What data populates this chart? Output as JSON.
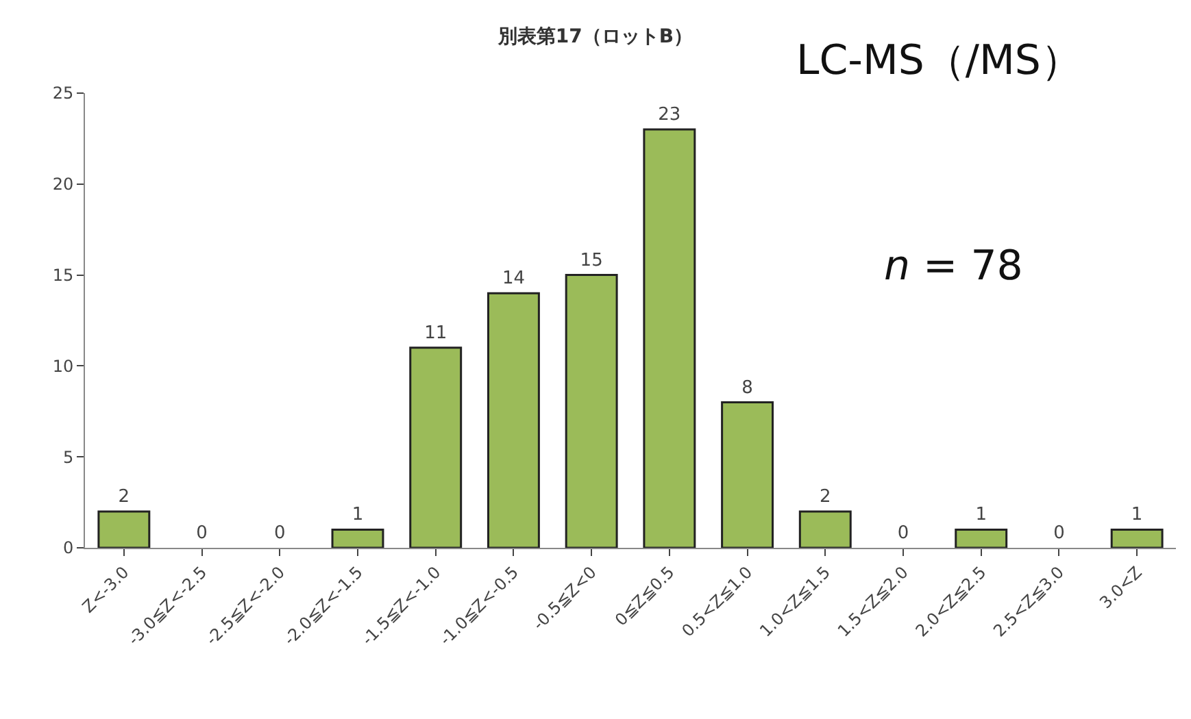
{
  "chart_data": {
    "type": "bar",
    "title": "別表第17（ロットB）",
    "categories": [
      "Z<-3.0",
      "-3.0≦Z<-2.5",
      "-2.5≦Z<-2.0",
      "-2.0≦Z<-1.5",
      "-1.5≦Z<-1.0",
      "-1.0≦Z<-0.5",
      "-0.5≦Z<0",
      "0≦Z≦0.5",
      "0.5<Z≦1.0",
      "1.0<Z≦1.5",
      "1.5<Z≦2.0",
      "2.0<Z≦2.5",
      "2.5<Z≦3.0",
      "3.0<Z"
    ],
    "values": [
      2,
      0,
      0,
      1,
      11,
      14,
      15,
      23,
      8,
      2,
      0,
      1,
      0,
      1
    ],
    "color": "#9bbb59",
    "ylim": [
      0,
      25
    ],
    "yticks": [
      0,
      5,
      10,
      15,
      20,
      25
    ],
    "data_labels": true,
    "annotations": [
      "LC-MS（/MS）",
      "n = 78"
    ]
  }
}
